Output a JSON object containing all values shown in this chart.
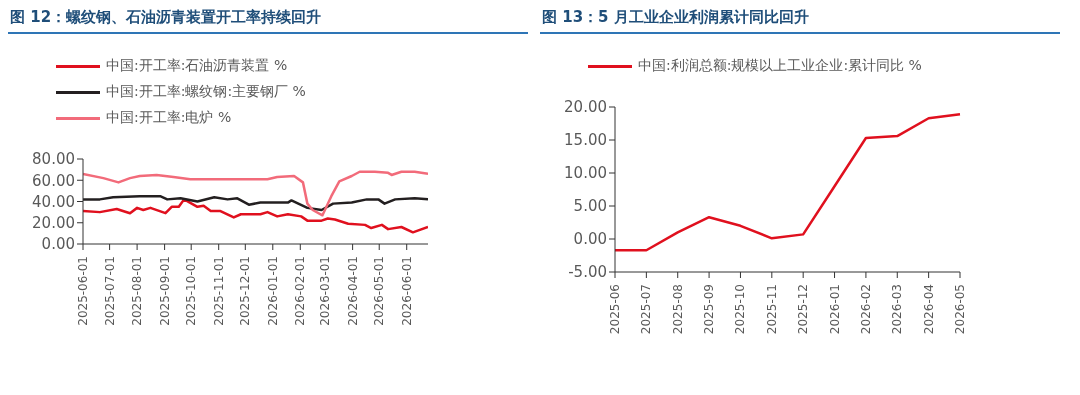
{
  "chart_data": [
    {
      "type": "line",
      "title": "图 12：螺纹钢、石油沥青装置开工率持续回升",
      "legend": "top left",
      "xlim": [
        "2025-06-01",
        "2026-06-25"
      ],
      "xticks": [
        "2025-06-01",
        "2025-07-01",
        "2025-08-01",
        "2025-09-01",
        "2025-10-01",
        "2025-11-01",
        "2025-12-01",
        "2026-01-01",
        "2026-02-01",
        "2026-03-01",
        "2026-04-01",
        "2026-05-01",
        "2026-06-01"
      ],
      "ylim": [
        0,
        80
      ],
      "yticks": [
        {
          "value": 0,
          "label": "0.00"
        },
        {
          "value": 20,
          "label": "20.00"
        },
        {
          "value": 40,
          "label": "40.00"
        },
        {
          "value": 60,
          "label": "60.00"
        },
        {
          "value": 80,
          "label": "80.00"
        }
      ],
      "series": [
        {
          "name": "中国:开工率:石油沥青装置 %",
          "color": "#e0101e",
          "x": [
            "2025-06-01",
            "2025-06-20",
            "2025-07-09",
            "2025-07-24",
            "2025-08-01",
            "2025-08-08",
            "2025-08-16",
            "2025-09-02",
            "2025-09-09",
            "2025-09-17",
            "2025-09-23",
            "2025-10-08",
            "2025-10-15",
            "2025-10-23",
            "2025-11-03",
            "2025-11-18",
            "2025-11-26",
            "2025-12-18",
            "2025-12-26",
            "2026-01-06",
            "2026-01-18",
            "2026-02-02",
            "2026-02-09",
            "2026-02-25",
            "2026-03-04",
            "2026-03-12",
            "2026-03-27",
            "2026-04-15",
            "2026-04-22",
            "2026-05-04",
            "2026-05-11",
            "2026-05-26",
            "2026-06-08",
            "2026-06-25"
          ],
          "values": [
            31,
            30,
            33,
            29,
            34,
            32,
            34,
            29,
            35,
            35,
            42,
            35,
            36,
            31,
            31,
            25,
            28,
            28,
            30,
            26,
            28,
            26,
            22,
            22,
            24,
            23,
            19,
            18,
            15,
            18,
            14,
            16,
            11,
            16
          ]
        },
        {
          "name": "中国:开工率:螺纹钢:主要钢厂 %",
          "color": "#231f20",
          "x": [
            "2025-06-01",
            "2025-06-20",
            "2025-07-05",
            "2025-08-04",
            "2025-08-27",
            "2025-09-04",
            "2025-09-19",
            "2025-10-08",
            "2025-10-27",
            "2025-11-11",
            "2025-11-22",
            "2025-12-05",
            "2025-12-18",
            "2026-01-18",
            "2026-01-22",
            "2026-02-09",
            "2026-02-25",
            "2026-03-10",
            "2026-03-31",
            "2026-04-17",
            "2026-04-30",
            "2026-05-07",
            "2026-05-19",
            "2026-06-10",
            "2026-06-25"
          ],
          "values": [
            42,
            42,
            44,
            45,
            45,
            42,
            43,
            40,
            44,
            42,
            43,
            37,
            39,
            39,
            41,
            34,
            32,
            38,
            39,
            42,
            42,
            38,
            42,
            43,
            42
          ]
        },
        {
          "name": "中国:开工率:电炉 %",
          "color": "#f26b7a",
          "x": [
            "2025-06-01",
            "2025-06-24",
            "2025-07-11",
            "2025-07-24",
            "2025-08-04",
            "2025-08-23",
            "2025-09-11",
            "2025-09-30",
            "2025-10-27",
            "2025-11-26",
            "2025-12-15",
            "2025-12-26",
            "2026-01-06",
            "2026-01-25",
            "2026-02-04",
            "2026-02-09",
            "2026-02-15",
            "2026-02-26",
            "2026-03-08",
            "2026-03-17",
            "2026-03-31",
            "2026-04-09",
            "2026-04-26",
            "2026-05-11",
            "2026-05-15",
            "2026-05-26",
            "2026-06-10",
            "2026-06-25"
          ],
          "values": [
            66,
            62,
            58,
            62,
            64,
            65,
            63,
            61,
            61,
            61,
            61,
            61,
            63,
            64,
            58,
            38,
            32,
            27,
            45,
            59,
            64,
            68,
            68,
            67,
            65,
            68,
            68,
            66
          ]
        }
      ]
    },
    {
      "type": "line",
      "title": "图 13：5 月工业企业利润累计同比回升",
      "legend": "top left",
      "categories": [
        "2025-06",
        "2025-07",
        "2025-08",
        "2025-09",
        "2025-10",
        "2025-11",
        "2025-12",
        "2026-01",
        "2026-02",
        "2026-03",
        "2026-04",
        "2026-05"
      ],
      "ylim": [
        -5,
        20
      ],
      "yticks": [
        {
          "value": -5,
          "label": "-5.00"
        },
        {
          "value": 0,
          "label": "0.00"
        },
        {
          "value": 5,
          "label": "5.00"
        },
        {
          "value": 10,
          "label": "10.00"
        },
        {
          "value": 15,
          "label": "15.00"
        },
        {
          "value": 20,
          "label": "20.00"
        }
      ],
      "series": [
        {
          "name": "中国:利润总额:规模以上工业企业:累计同比 %",
          "color": "#e0101e",
          "values": [
            -1.7,
            -1.7,
            1.0,
            3.3,
            2.0,
            0.1,
            0.7,
            8.0,
            15.3,
            15.6,
            18.3,
            18.9
          ]
        }
      ]
    }
  ]
}
